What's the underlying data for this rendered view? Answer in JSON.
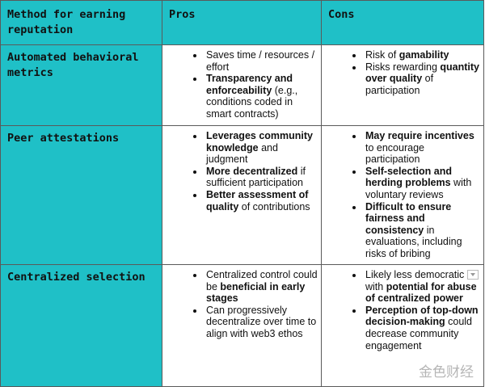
{
  "table": {
    "header": [
      "Method for earning reputation",
      "Pros",
      "Cons"
    ],
    "rows": [
      {
        "method": "Automated behavioral metrics",
        "pros": [
          [
            {
              "text": "Saves time / resources / effort",
              "bold": false
            }
          ],
          [
            {
              "text": "Transparency and enforceability",
              "bold": true
            },
            {
              "text": " (e.g., conditions coded in smart contracts)",
              "bold": false
            }
          ]
        ],
        "cons": [
          [
            {
              "text": "Risk of ",
              "bold": false
            },
            {
              "text": "gamability",
              "bold": true
            }
          ],
          [
            {
              "text": "Risks rewarding ",
              "bold": false
            },
            {
              "text": "quantity over quality",
              "bold": true
            },
            {
              "text": " of participation",
              "bold": false
            }
          ]
        ]
      },
      {
        "method": "Peer attestations",
        "pros": [
          [
            {
              "text": "Leverages community knowledge",
              "bold": true
            },
            {
              "text": " and judgment",
              "bold": false
            }
          ],
          [
            {
              "text": "More decentralized",
              "bold": true
            },
            {
              "text": " if sufficient participation",
              "bold": false
            }
          ],
          [
            {
              "text": "Better assessment of quality",
              "bold": true
            },
            {
              "text": " of contributions",
              "bold": false
            }
          ]
        ],
        "cons": [
          [
            {
              "text": "May require incentives",
              "bold": true
            },
            {
              "text": " to encourage participation",
              "bold": false
            }
          ],
          [
            {
              "text": "Self-selection and herding problems",
              "bold": true
            },
            {
              "text": " with voluntary reviews",
              "bold": false
            }
          ],
          [
            {
              "text": "Difficult to ensure fairness and consistency",
              "bold": true
            },
            {
              "text": " in evaluations, including risks of bribing",
              "bold": false
            }
          ]
        ]
      },
      {
        "method": "Centralized selection",
        "pros": [
          [
            {
              "text": "Centralized control could be ",
              "bold": false
            },
            {
              "text": "beneficial in early stages",
              "bold": true
            }
          ],
          [
            {
              "text": "Can progressively decentralize over time to align with web3 ethos",
              "bold": false
            }
          ]
        ],
        "cons": [
          [
            {
              "text": "Likely less democratic with ",
              "bold": false
            },
            {
              "text": "potential for abuse of centralized power",
              "bold": true
            }
          ],
          [
            {
              "text": "Perception of top-down decision-making",
              "bold": true
            },
            {
              "text": " could decrease community engagement",
              "bold": false
            }
          ]
        ]
      }
    ]
  },
  "watermark": "金色财经"
}
